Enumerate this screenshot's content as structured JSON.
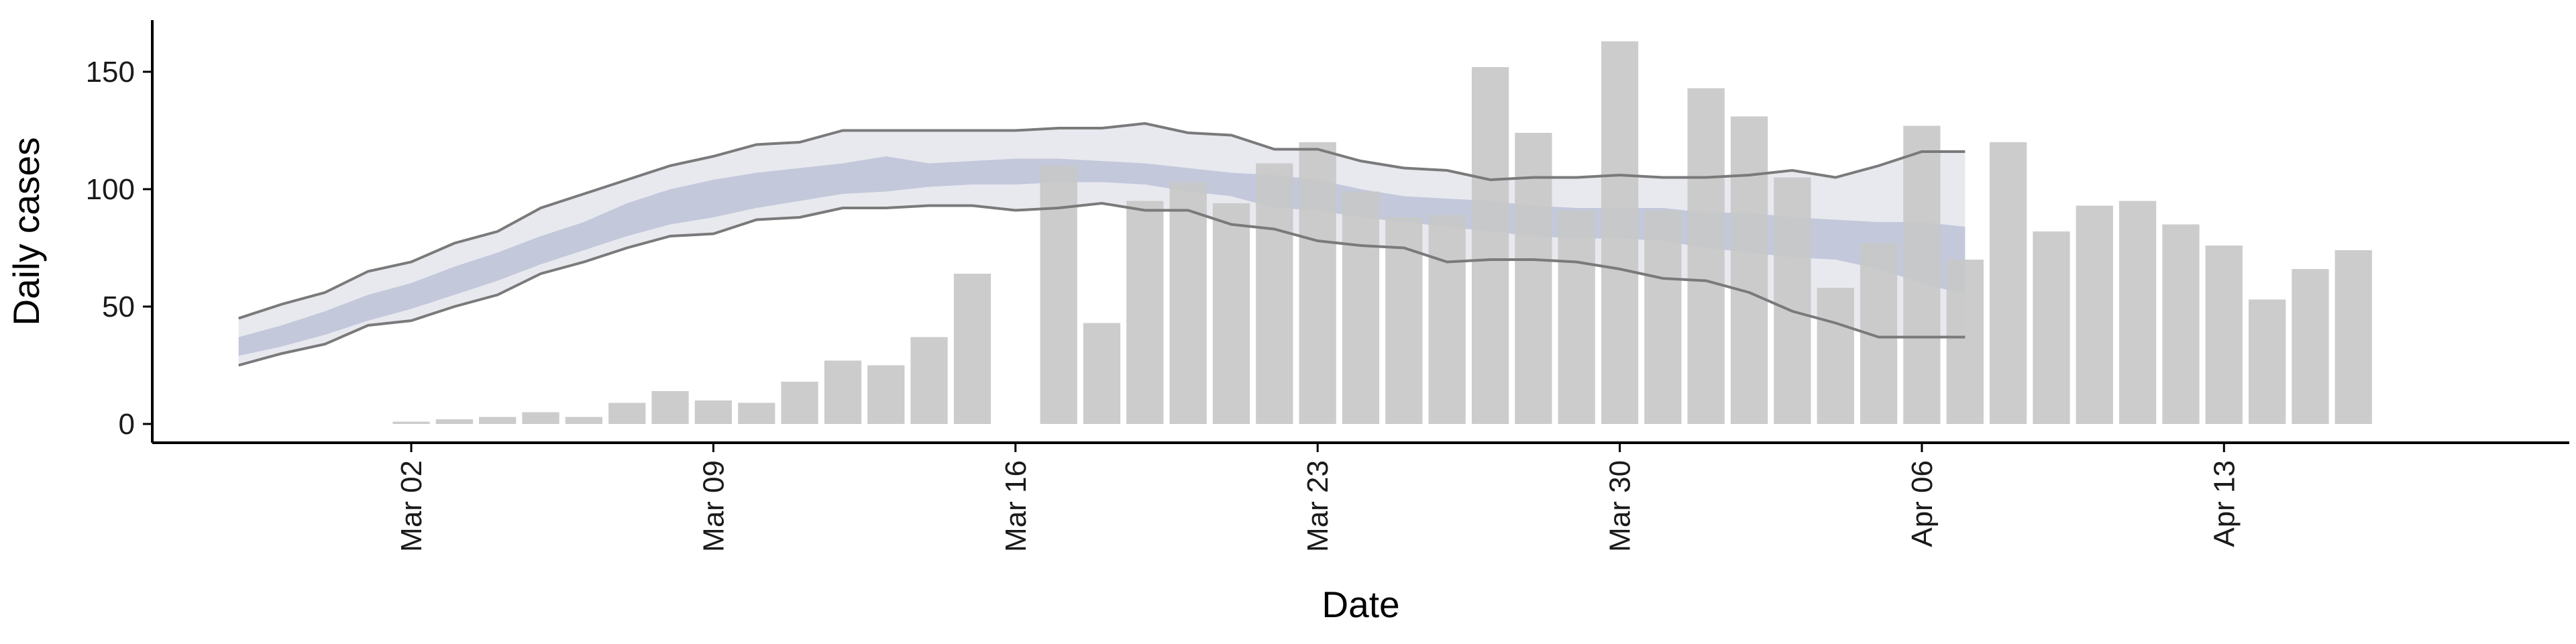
{
  "chart_data": {
    "type": "bar",
    "title": "",
    "xlabel": "Date",
    "ylabel": "Daily cases",
    "xlim": [
      "2020-02-25",
      "2020-04-21"
    ],
    "ylim": [
      -8,
      172
    ],
    "x_ticks": [
      {
        "date": "2020-03-02",
        "label": "Mar 02"
      },
      {
        "date": "2020-03-09",
        "label": "Mar 09"
      },
      {
        "date": "2020-03-16",
        "label": "Mar 16"
      },
      {
        "date": "2020-03-23",
        "label": "Mar 23"
      },
      {
        "date": "2020-03-30",
        "label": "Mar 30"
      },
      {
        "date": "2020-04-06",
        "label": "Apr 06"
      },
      {
        "date": "2020-04-13",
        "label": "Apr 13"
      }
    ],
    "y_ticks": [
      0,
      50,
      100,
      150
    ],
    "grid": false,
    "colors": {
      "bars": "#c8c8c8",
      "band_outer": "#e8e9ef",
      "band_inner": "#c3c8db",
      "bound_line": "#7a7a7a",
      "axis": "#000000"
    },
    "bars": {
      "x": [
        "2020-03-02",
        "2020-03-03",
        "2020-03-04",
        "2020-03-05",
        "2020-03-06",
        "2020-03-07",
        "2020-03-08",
        "2020-03-09",
        "2020-03-10",
        "2020-03-11",
        "2020-03-12",
        "2020-03-13",
        "2020-03-14",
        "2020-03-15",
        "2020-03-16",
        "2020-03-17",
        "2020-03-18",
        "2020-03-19",
        "2020-03-20",
        "2020-03-21",
        "2020-03-22",
        "2020-03-23",
        "2020-03-24",
        "2020-03-25",
        "2020-03-26",
        "2020-03-27",
        "2020-03-28",
        "2020-03-29",
        "2020-03-30",
        "2020-03-31",
        "2020-04-01",
        "2020-04-02",
        "2020-04-03",
        "2020-04-04",
        "2020-04-05",
        "2020-04-06",
        "2020-04-07",
        "2020-04-08",
        "2020-04-09",
        "2020-04-10",
        "2020-04-11",
        "2020-04-12",
        "2020-04-13",
        "2020-04-14",
        "2020-04-15",
        "2020-04-16"
      ],
      "values": [
        1,
        2,
        3,
        5,
        3,
        9,
        14,
        10,
        9,
        18,
        27,
        25,
        37,
        64,
        0,
        110,
        43,
        95,
        103,
        94,
        111,
        120,
        99,
        88,
        89,
        152,
        124,
        91,
        163,
        91,
        143,
        131,
        105,
        58,
        77,
        127,
        70,
        120,
        82,
        93,
        95,
        85,
        76,
        53,
        66,
        74
      ]
    },
    "forecast": {
      "x": [
        "2020-02-27",
        "2020-02-28",
        "2020-02-29",
        "2020-03-01",
        "2020-03-02",
        "2020-03-03",
        "2020-03-04",
        "2020-03-05",
        "2020-03-06",
        "2020-03-07",
        "2020-03-08",
        "2020-03-09",
        "2020-03-10",
        "2020-03-11",
        "2020-03-12",
        "2020-03-13",
        "2020-03-14",
        "2020-03-15",
        "2020-03-16",
        "2020-03-17",
        "2020-03-18",
        "2020-03-19",
        "2020-03-20",
        "2020-03-21",
        "2020-03-22",
        "2020-03-23",
        "2020-03-24",
        "2020-03-25",
        "2020-03-26",
        "2020-03-27",
        "2020-03-28",
        "2020-03-29",
        "2020-03-30",
        "2020-03-31",
        "2020-04-01",
        "2020-04-02",
        "2020-04-03",
        "2020-04-04",
        "2020-04-05",
        "2020-04-06",
        "2020-04-07"
      ],
      "upper": [
        45,
        51,
        56,
        65,
        69,
        77,
        82,
        92,
        98,
        104,
        110,
        114,
        119,
        120,
        125,
        125,
        125,
        125,
        125,
        126,
        126,
        128,
        124,
        123,
        117,
        117,
        112,
        109,
        108,
        104,
        105,
        105,
        106,
        105,
        105,
        106,
        108,
        105,
        110,
        116,
        116
      ],
      "inner_upper": [
        37,
        42,
        48,
        55,
        60,
        67,
        73,
        80,
        86,
        94,
        100,
        104,
        107,
        109,
        111,
        114,
        111,
        112,
        113,
        113,
        112,
        111,
        109,
        107,
        106,
        104,
        100,
        97,
        96,
        95,
        93,
        92,
        92,
        92,
        90,
        90,
        88,
        87,
        86,
        86,
        84
      ],
      "inner_lower": [
        29,
        33,
        38,
        44,
        49,
        55,
        61,
        68,
        74,
        80,
        85,
        88,
        92,
        95,
        98,
        99,
        101,
        102,
        102,
        103,
        103,
        102,
        99,
        97,
        92,
        91,
        88,
        86,
        84,
        82,
        80,
        79,
        79,
        78,
        75,
        73,
        71,
        70,
        66,
        60,
        55
      ],
      "lower": [
        25,
        30,
        34,
        42,
        44,
        50,
        55,
        64,
        69,
        75,
        80,
        81,
        87,
        88,
        92,
        92,
        93,
        93,
        91,
        92,
        94,
        91,
        91,
        85,
        83,
        78,
        76,
        75,
        69,
        70,
        70,
        69,
        66,
        62,
        61,
        56,
        48,
        43,
        37,
        37,
        37
      ]
    }
  }
}
